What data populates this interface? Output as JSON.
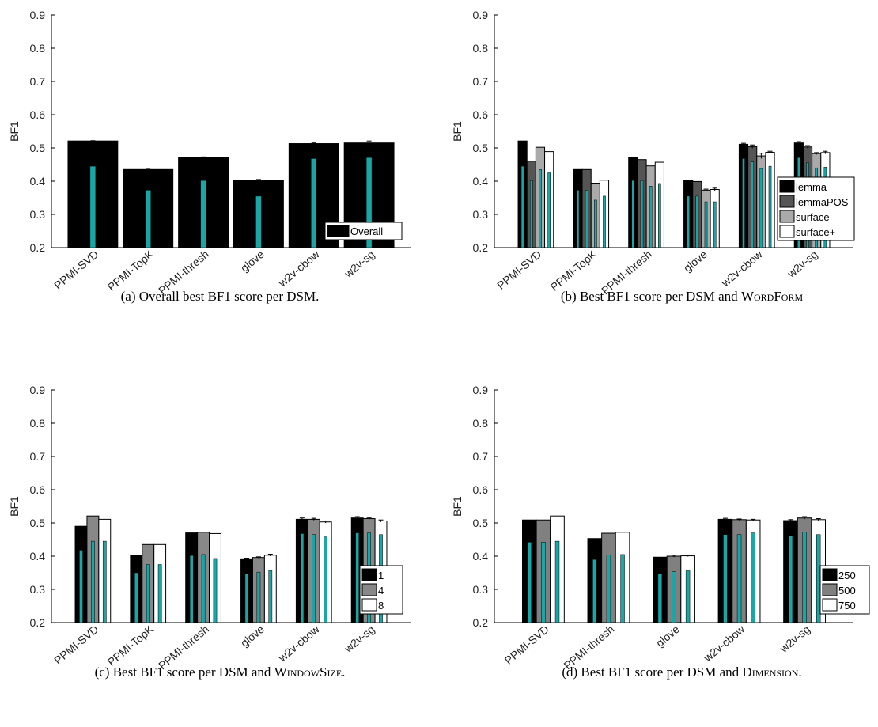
{
  "chart_data": [
    {
      "id": "a",
      "type": "bar",
      "caption": "(a) Overall best BF1 score per DSM.",
      "ylabel": "BF1",
      "ylim": [
        0.2,
        0.9
      ],
      "yticks": [
        "0.2",
        "0.3",
        "0.4",
        "0.5",
        "0.6",
        "0.7",
        "0.8",
        "0.9"
      ],
      "categories": [
        "PPMI-SVD",
        "PPMI-TopK",
        "PPMI-thresh",
        "glove",
        "w2v-cbow",
        "w2v-sg"
      ],
      "legend_position": "bottom-right",
      "series": [
        {
          "name": "Overall",
          "color": "#000000",
          "values": [
            0.521,
            0.435,
            0.472,
            0.402,
            0.513,
            0.515
          ],
          "errors": [
            0.001,
            0.001,
            0.001,
            0.003,
            0.002,
            0.006
          ],
          "inner": [
            0.445,
            0.373,
            0.402,
            0.355,
            0.468,
            0.471
          ]
        }
      ]
    },
    {
      "id": "b",
      "type": "bar",
      "caption_prefix": "(b) Best BF1 score per DSM and ",
      "caption_smallcaps": "WordForm",
      "caption_suffix": "",
      "ylabel": "BF1",
      "ylim": [
        0.2,
        0.9
      ],
      "yticks": [
        "0.2",
        "0.3",
        "0.4",
        "0.5",
        "0.6",
        "0.7",
        "0.8",
        "0.9"
      ],
      "categories": [
        "PPMI-SVD",
        "PPMI-TopK",
        "PPMI-thresh",
        "glove",
        "w2v-cbow",
        "w2v-sg"
      ],
      "legend_position": "right",
      "series": [
        {
          "name": "lemma",
          "color": "#000000",
          "values": [
            0.521,
            0.435,
            0.472,
            0.402,
            0.511,
            0.515
          ],
          "errors": [
            0,
            0,
            0,
            0,
            0.003,
            0.004
          ],
          "inner": [
            0.445,
            0.373,
            0.402,
            0.355,
            0.468,
            0.471
          ]
        },
        {
          "name": "lemmaPOS",
          "color": "#555555",
          "values": [
            0.46,
            0.435,
            0.465,
            0.399,
            0.504,
            0.503
          ],
          "errors": [
            0,
            0,
            0,
            0,
            0.005,
            0.004
          ],
          "inner": [
            0.402,
            0.373,
            0.402,
            0.355,
            0.458,
            0.455
          ]
        },
        {
          "name": "surface",
          "color": "#aaaaaa",
          "values": [
            0.502,
            0.394,
            0.446,
            0.373,
            0.476,
            0.483
          ],
          "errors": [
            0,
            0,
            0,
            0.003,
            0.008,
            0.003
          ],
          "inner": [
            0.435,
            0.343,
            0.385,
            0.338,
            0.438,
            0.44
          ]
        },
        {
          "name": "surface+",
          "color": "#ffffff",
          "values": [
            0.489,
            0.403,
            0.457,
            0.375,
            0.487,
            0.486
          ],
          "errors": [
            0,
            0,
            0,
            0.004,
            0.003,
            0.004
          ],
          "inner": [
            0.425,
            0.355,
            0.393,
            0.338,
            0.445,
            0.442
          ]
        }
      ]
    },
    {
      "id": "c",
      "type": "bar",
      "caption_prefix": "(c) Best BF1 score per DSM and ",
      "caption_smallcaps": "WindowSize",
      "caption_suffix": ".",
      "ylabel": "BF1",
      "ylim": [
        0.2,
        0.9
      ],
      "yticks": [
        "0.2",
        "0.3",
        "0.4",
        "0.5",
        "0.6",
        "0.7",
        "0.8",
        "0.9"
      ],
      "categories": [
        "PPMI-SVD",
        "PPMI-TopK",
        "PPMI-thresh",
        "glove",
        "w2v-cbow",
        "w2v-sg"
      ],
      "legend_position": "bottom-right",
      "series": [
        {
          "name": "1",
          "color": "#000000",
          "values": [
            0.49,
            0.403,
            0.47,
            0.392,
            0.511,
            0.515
          ],
          "errors": [
            0,
            0,
            0,
            0.002,
            0.004,
            0.004
          ],
          "inner": [
            0.418,
            0.35,
            0.402,
            0.347,
            0.468,
            0.47
          ]
        },
        {
          "name": "4",
          "color": "#888888",
          "values": [
            0.521,
            0.435,
            0.472,
            0.396,
            0.511,
            0.513
          ],
          "errors": [
            0,
            0,
            0,
            0.002,
            0.003,
            0.003
          ],
          "inner": [
            0.445,
            0.375,
            0.405,
            0.352,
            0.465,
            0.47
          ]
        },
        {
          "name": "8",
          "color": "#ffffff",
          "values": [
            0.511,
            0.435,
            0.468,
            0.403,
            0.503,
            0.506
          ],
          "errors": [
            0,
            0,
            0,
            0.003,
            0.003,
            0.003
          ],
          "inner": [
            0.445,
            0.375,
            0.393,
            0.357,
            0.458,
            0.465
          ]
        }
      ]
    },
    {
      "id": "d",
      "type": "bar",
      "caption_prefix": "(d) Best BF1 score per DSM and ",
      "caption_smallcaps": "Dimension",
      "caption_suffix": ".",
      "ylabel": "BF1",
      "ylim": [
        0.2,
        0.9
      ],
      "yticks": [
        "0.2",
        "0.3",
        "0.4",
        "0.5",
        "0.6",
        "0.7",
        "0.8",
        "0.9"
      ],
      "categories": [
        "PPMI-SVD",
        "PPMI-thresh",
        "glove",
        "w2v-cbow",
        "w2v-sg"
      ],
      "legend_position": "bottom-right",
      "series": [
        {
          "name": "250",
          "color": "#000000",
          "values": [
            0.509,
            0.453,
            0.397,
            0.511,
            0.507
          ],
          "errors": [
            0,
            0,
            0,
            0.003,
            0.003
          ],
          "inner": [
            0.442,
            0.39,
            0.348,
            0.465,
            0.462
          ]
        },
        {
          "name": "500",
          "color": "#808080",
          "values": [
            0.509,
            0.469,
            0.4,
            0.51,
            0.515
          ],
          "errors": [
            0,
            0,
            0.003,
            0.002,
            0.004
          ],
          "inner": [
            0.442,
            0.403,
            0.353,
            0.465,
            0.472
          ]
        },
        {
          "name": "750",
          "color": "#ffffff",
          "values": [
            0.521,
            0.472,
            0.401,
            0.509,
            0.51
          ],
          "errors": [
            0,
            0,
            0.002,
            0.002,
            0.003
          ],
          "inner": [
            0.445,
            0.405,
            0.356,
            0.47,
            0.465
          ]
        }
      ]
    }
  ],
  "inner_bar_color": "#1aa6a6"
}
